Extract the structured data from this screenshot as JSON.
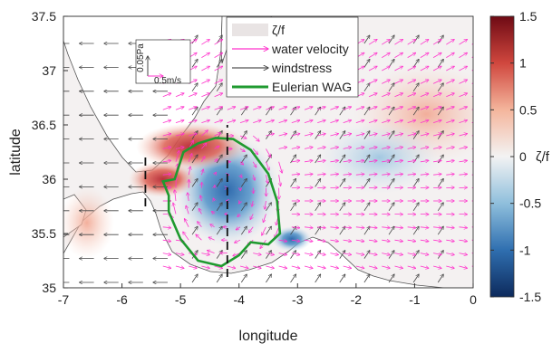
{
  "chart_data": {
    "type": "heatmap",
    "title": "",
    "xlabel": "longitude",
    "ylabel": "latitude",
    "xlim": [
      -7,
      0
    ],
    "ylim": [
      35,
      37.5
    ],
    "xticks": [
      "-7",
      "-6",
      "-5",
      "-4",
      "-3",
      "-2",
      "-1",
      "0"
    ],
    "yticks": [
      "35",
      "35.5",
      "36",
      "36.5",
      "37",
      "37.5"
    ],
    "colorbar": {
      "label": "ζ/f",
      "range": [
        -1.5,
        1.5
      ],
      "ticks": [
        "1.5",
        "1",
        "0.5",
        "0",
        "-0.5",
        "-1",
        "-1.5"
      ],
      "colors": [
        "#0d2a5c",
        "#2f6fb0",
        "#8fbfdc",
        "#f3f3f3",
        "#f4b59c",
        "#d0473e",
        "#6e0a14"
      ]
    },
    "legend": {
      "placement": "top-center",
      "entries": [
        {
          "label": "ζ/f",
          "color": "#e9e4e4",
          "kind": "patch"
        },
        {
          "label": "water velocity",
          "color": "#ff33cc",
          "kind": "arrow"
        },
        {
          "label": "windstress",
          "color": "#555555",
          "kind": "arrow"
        },
        {
          "label": "Eulerian WAG",
          "color": "#1f9a2f",
          "kind": "line"
        }
      ]
    },
    "scale_key": {
      "wind": "0.05Pa",
      "water": "0.5m/s"
    },
    "wag_center": {
      "lon": -4.2,
      "lat": 35.9
    },
    "wag_contour": [
      [
        -5.3,
        35.98
      ],
      [
        -5.1,
        36.0
      ],
      [
        -4.95,
        36.25
      ],
      [
        -4.7,
        36.33
      ],
      [
        -4.4,
        36.38
      ],
      [
        -4.1,
        36.37
      ],
      [
        -3.8,
        36.27
      ],
      [
        -3.5,
        36.05
      ],
      [
        -3.35,
        35.8
      ],
      [
        -3.3,
        35.5
      ],
      [
        -3.5,
        35.4
      ],
      [
        -3.8,
        35.42
      ],
      [
        -4.0,
        35.3
      ],
      [
        -4.3,
        35.2
      ],
      [
        -4.7,
        35.25
      ],
      [
        -5.0,
        35.45
      ],
      [
        -5.2,
        35.7
      ],
      [
        -5.2,
        35.85
      ]
    ],
    "transect_lines": [
      {
        "lon": -4.2,
        "lat_range": [
          35.1,
          36.5
        ],
        "style": "dashed"
      },
      {
        "lon": -5.6,
        "lat_range": [
          35.75,
          36.25
        ],
        "style": "dashed"
      }
    ],
    "anomaly_fields": [
      {
        "lon": -4.2,
        "lat": 35.9,
        "sign": "negative",
        "value": -1.1
      },
      {
        "lon": -4.8,
        "lat": 36.3,
        "sign": "positive",
        "value": 1.0
      },
      {
        "lon": -5.3,
        "lat": 36.0,
        "sign": "positive",
        "value": 1.2
      },
      {
        "lon": -3.1,
        "lat": 35.45,
        "sign": "negative",
        "value": -0.7
      },
      {
        "lon": -0.8,
        "lat": 36.6,
        "sign": "positive",
        "value": 0.3
      },
      {
        "lon": -1.6,
        "lat": 36.2,
        "sign": "negative",
        "value": -0.3
      },
      {
        "lon": -6.6,
        "lat": 35.6,
        "sign": "positive",
        "value": 0.5
      }
    ]
  }
}
